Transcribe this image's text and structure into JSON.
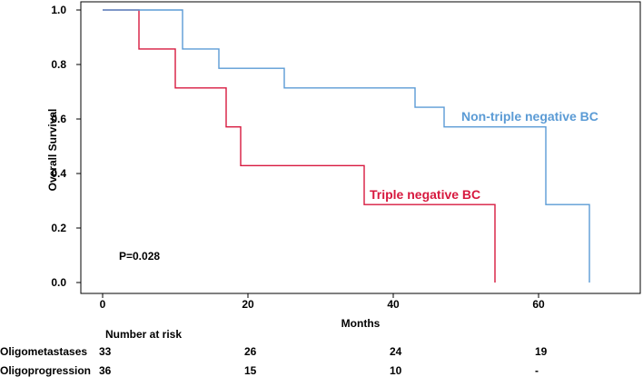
{
  "chart_data": {
    "type": "line",
    "step": true,
    "title": "",
    "xlabel": "Months",
    "ylabel": "Overall Survival",
    "xlim": [
      -3,
      74
    ],
    "ylim": [
      -0.04,
      1.03
    ],
    "x_ticks": [
      0,
      20,
      40,
      60
    ],
    "x_tick_labels": [
      "0",
      "20",
      "40",
      "60"
    ],
    "y_ticks": [
      0.0,
      0.2,
      0.4,
      0.6,
      0.8,
      1.0
    ],
    "y_tick_labels": [
      "0.0",
      "0.2",
      "0.4",
      "0.6",
      "0.8",
      "1.0"
    ],
    "series": [
      {
        "name": "Triple negative BC",
        "color": "#d7193f",
        "x": [
          0,
          5,
          10,
          17,
          19,
          36,
          54,
          54
        ],
        "y": [
          1.0,
          0.857,
          0.714,
          0.571,
          0.429,
          0.286,
          0.286,
          0.0
        ]
      },
      {
        "name": "Non-triple negative BC",
        "color": "#5b9bd5",
        "x": [
          0,
          11,
          16,
          25,
          43,
          47,
          61,
          67,
          67
        ],
        "y": [
          1.0,
          0.857,
          0.786,
          0.714,
          0.643,
          0.571,
          0.286,
          0.286,
          0.0
        ]
      }
    ],
    "annotations": [
      {
        "text": "P=0.028"
      }
    ],
    "risk_table": {
      "title": "Number at risk",
      "times": [
        0,
        20,
        40,
        60
      ],
      "rows": [
        {
          "label": "Oligometastases",
          "values": [
            "33",
            "26",
            "24",
            "19"
          ]
        },
        {
          "label": "Oligoprogression",
          "values": [
            "36",
            "15",
            "10",
            "-"
          ]
        }
      ]
    }
  }
}
